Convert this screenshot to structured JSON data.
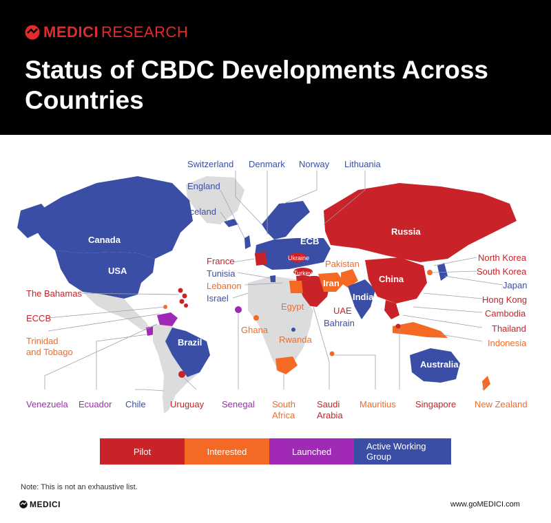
{
  "header": {
    "brand_primary": "MEDICI",
    "brand_secondary": "RESEARCH",
    "title": "Status of CBDC Developments Across Countries"
  },
  "colors": {
    "pilot": "#c92228",
    "interested": "#f46a25",
    "launched": "#a02ab5",
    "active_working_group": "#3a4ea6",
    "neutral": "#dcdcdc"
  },
  "labels": {
    "switzerland": "Switzerland",
    "denmark": "Denmark",
    "norway": "Norway",
    "lithuania": "Lithuania",
    "england": "England",
    "iceland": "Iceland",
    "canada": "Canada",
    "usa": "USA",
    "ecb": "ECB",
    "russia": "Russia",
    "france": "France",
    "ukraine": "Ukraine",
    "tunisia": "Tunisia",
    "lebanon": "Lebanon",
    "turkey": "Turkey",
    "pakistan": "Pakistan",
    "north_korea": "North Korea",
    "south_korea": "South Korea",
    "israel": "Israel",
    "iran": "Iran",
    "china": "China",
    "japan": "Japan",
    "the_bahamas": "The Bahamas",
    "egypt": "Egypt",
    "india": "India",
    "hong_kong": "Hong Kong",
    "uae": "UAE",
    "cambodia": "Cambodia",
    "eccb": "ECCB",
    "bahrain": "Bahrain",
    "thailand": "Thailand",
    "ghana": "Ghana",
    "brazil": "Brazil",
    "trinidad_line1": "Trinidad",
    "trinidad_line2": "and Tobago",
    "rwanda": "Rwanda",
    "indonesia": "Indonesia",
    "australia": "Australia",
    "venezuela": "Venezuela",
    "ecuador": "Ecuador",
    "chile": "Chile",
    "uruguay": "Uruguay",
    "senegal": "Senegal",
    "south_africa_line1": "South",
    "south_africa_line2": "Africa",
    "saudi_line1": "Saudi",
    "saudi_line2": "Arabia",
    "mauritius": "Mauritius",
    "singapore": "Singapore",
    "new_zealand": "New Zealand"
  },
  "legend": {
    "pilot": "Pilot",
    "interested": "Interested",
    "launched": "Launched",
    "awg_line1": "Active Working",
    "awg_line2": "Group"
  },
  "footer": {
    "note": "Note: This is not an exhaustive list.",
    "brand": "MEDICI",
    "url": "www.goMEDICI.com"
  }
}
